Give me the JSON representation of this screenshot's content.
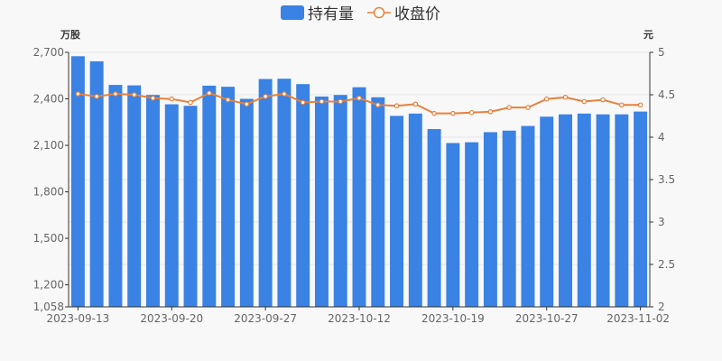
{
  "legend": {
    "holding_label": "持有量",
    "price_label": "收盘价"
  },
  "colors": {
    "bar": "#3a82e3",
    "line": "#e8803a",
    "axis": "#333333",
    "grid": "#e6e6e6"
  },
  "chart_data": {
    "type": "bar",
    "categories": [
      "2023-09-13",
      "2023-09-14",
      "2023-09-15",
      "2023-09-18",
      "2023-09-19",
      "2023-09-20",
      "2023-09-21",
      "2023-09-22",
      "2023-09-25",
      "2023-09-26",
      "2023-09-27",
      "2023-09-28",
      "2023-10-09",
      "2023-10-10",
      "2023-10-11",
      "2023-10-12",
      "2023-10-13",
      "2023-10-16",
      "2023-10-17",
      "2023-10-18",
      "2023-10-19",
      "2023-10-20",
      "2023-10-23",
      "2023-10-24",
      "2023-10-25",
      "2023-10-26",
      "2023-10-27",
      "2023-10-30",
      "2023-10-31",
      "2023-11-01",
      "2023-11-02"
    ],
    "x_tick_labels": [
      "2023-09-13",
      "2023-09-20",
      "2023-09-27",
      "2023-10-12",
      "2023-10-19",
      "2023-10-27",
      "2023-11-02"
    ],
    "x_tick_indices": [
      0,
      5,
      10,
      15,
      20,
      25,
      30
    ],
    "series": [
      {
        "name": "持有量",
        "type": "bar",
        "axis": "left",
        "values": [
          2675,
          2642,
          2490,
          2487,
          2425,
          2365,
          2355,
          2485,
          2478,
          2400,
          2528,
          2530,
          2495,
          2415,
          2425,
          2475,
          2410,
          2290,
          2305,
          2205,
          2115,
          2120,
          2185,
          2195,
          2225,
          2285,
          2300,
          2305,
          2300,
          2300,
          2318
        ]
      },
      {
        "name": "收盘价",
        "type": "line",
        "axis": "right",
        "values": [
          4.51,
          4.48,
          4.51,
          4.5,
          4.46,
          4.45,
          4.41,
          4.52,
          4.44,
          4.39,
          4.48,
          4.51,
          4.41,
          4.42,
          4.42,
          4.46,
          4.38,
          4.37,
          4.39,
          4.28,
          4.28,
          4.29,
          4.3,
          4.35,
          4.35,
          4.45,
          4.47,
          4.42,
          4.44,
          4.38,
          4.38
        ]
      }
    ],
    "y_left": {
      "unit": "万股",
      "ticks": [
        1058,
        1200,
        1500,
        1800,
        2100,
        2400,
        2700
      ],
      "tick_labels": [
        "1,058",
        "1,200",
        "1,500",
        "1,800",
        "2,100",
        "2,400",
        "2,700"
      ],
      "min": 1058,
      "max": 2700
    },
    "y_right": {
      "unit": "元",
      "ticks": [
        2,
        2.5,
        3,
        3.5,
        4,
        4.5,
        5
      ],
      "tick_labels": [
        "2",
        "2.5",
        "3",
        "3.5",
        "4",
        "4.5",
        "5"
      ],
      "min": 2,
      "max": 5
    },
    "grid": true,
    "legend_position": "top-center"
  }
}
